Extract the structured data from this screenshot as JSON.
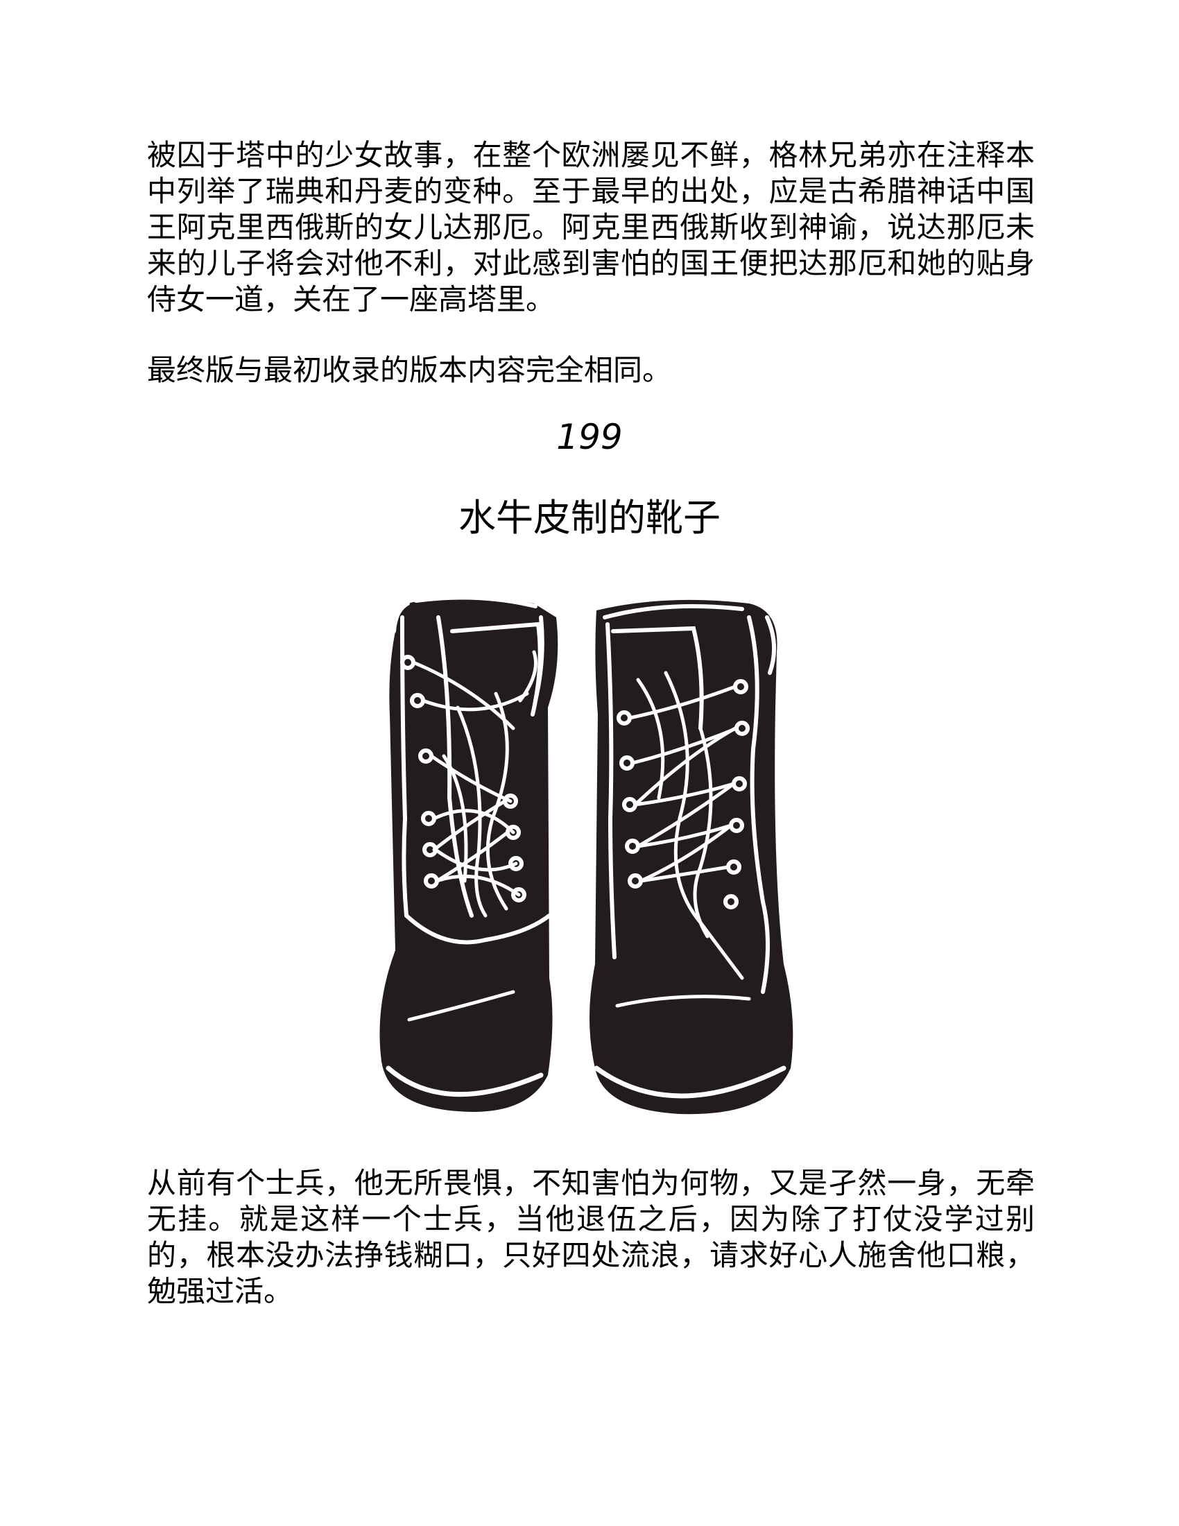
{
  "intro_paragraph": "被囚于塔中的少女故事，在整个欧洲屡见不鲜，格林兄弟亦在注释本中列举了瑞典和丹麦的变种。至于最早的出处，应是古希腊神话中国王阿克里西俄斯的女儿达那厄。阿克里西俄斯收到神谕，说达那厄未来的儿子将会对他不利，对此感到害怕的国王便把达那厄和她的贴身侍女一道，关在了一座高塔里。",
  "final_note": "最终版与最初收录的版本内容完全相同。",
  "story": {
    "number": "199",
    "title": "水牛皮制的靴子",
    "illustration_icon": "boots-illustration-icon",
    "opening_paragraph": "从前有个士兵，他无所畏惧，不知害怕为何物，又是孑然一身，无牵无挂。就是这样一个士兵，当他退伍之后，因为除了打仗没学过别的，根本没办法挣钱糊口，只好四处流浪，请求好心人施舍他口粮，勉强过活。"
  }
}
